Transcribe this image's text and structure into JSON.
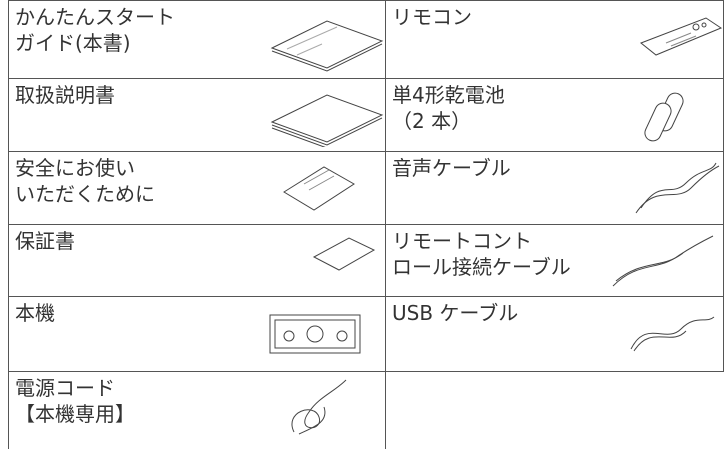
{
  "table": {
    "rows": [
      [
        [
          "かんたんスタート",
          "ガイド(本書)"
        ],
        [
          "リモコン"
        ]
      ],
      [
        [
          "取扱説明書"
        ],
        [
          "単4形乾電池",
          "（2 本）"
        ]
      ],
      [
        [
          "安全にお使い",
          "いただくために"
        ],
        [
          "音声ケーブル"
        ]
      ],
      [
        [
          "保証書"
        ],
        [
          "リモートコント",
          "ロール接続ケーブル"
        ]
      ],
      [
        [
          "本機"
        ],
        [
          "USB ケーブル"
        ]
      ],
      [
        [
          "電源コード",
          "【本機専用】"
        ],
        []
      ]
    ]
  }
}
